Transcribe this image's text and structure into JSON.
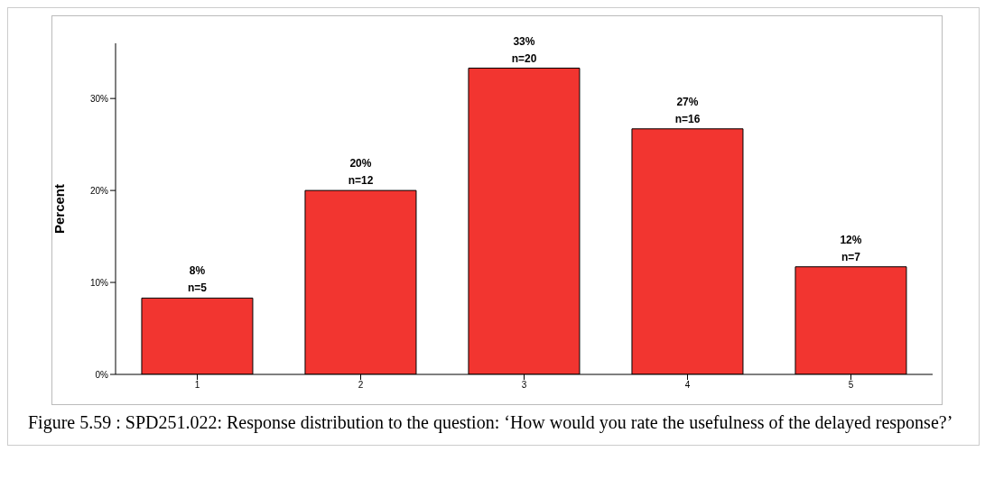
{
  "chart_data": {
    "type": "bar",
    "ylabel": "Percent",
    "categories": [
      "1",
      "2",
      "3",
      "4",
      "5"
    ],
    "values": [
      8.3,
      20,
      33.3,
      26.7,
      11.7
    ],
    "color": "#f23530",
    "value_labels": [
      "8%",
      "20%",
      "33%",
      "27%",
      "12%"
    ],
    "annotations": [
      {
        "text": "n=5",
        "x": "1",
        "y": 8.3
      },
      {
        "text": "n=12",
        "x": "2",
        "y": 20
      },
      {
        "text": "n=20",
        "x": "3",
        "y": 33.3
      },
      {
        "text": "n=16",
        "x": "4",
        "y": 26.7
      },
      {
        "text": "n=7",
        "x": "5",
        "y": 11.7
      },
      "Figure 5.59 : SPD251.022: Response distribution to the question: ‘How would you rate the usefulness of the delayed response?’"
    ],
    "ylim": [
      0,
      36
    ],
    "yticks": [
      {
        "value": 0,
        "label": "0%"
      },
      {
        "value": 10,
        "label": "10%"
      },
      {
        "value": 20,
        "label": "20%"
      },
      {
        "value": 30,
        "label": "30%"
      }
    ],
    "grid": false,
    "legend": false
  }
}
